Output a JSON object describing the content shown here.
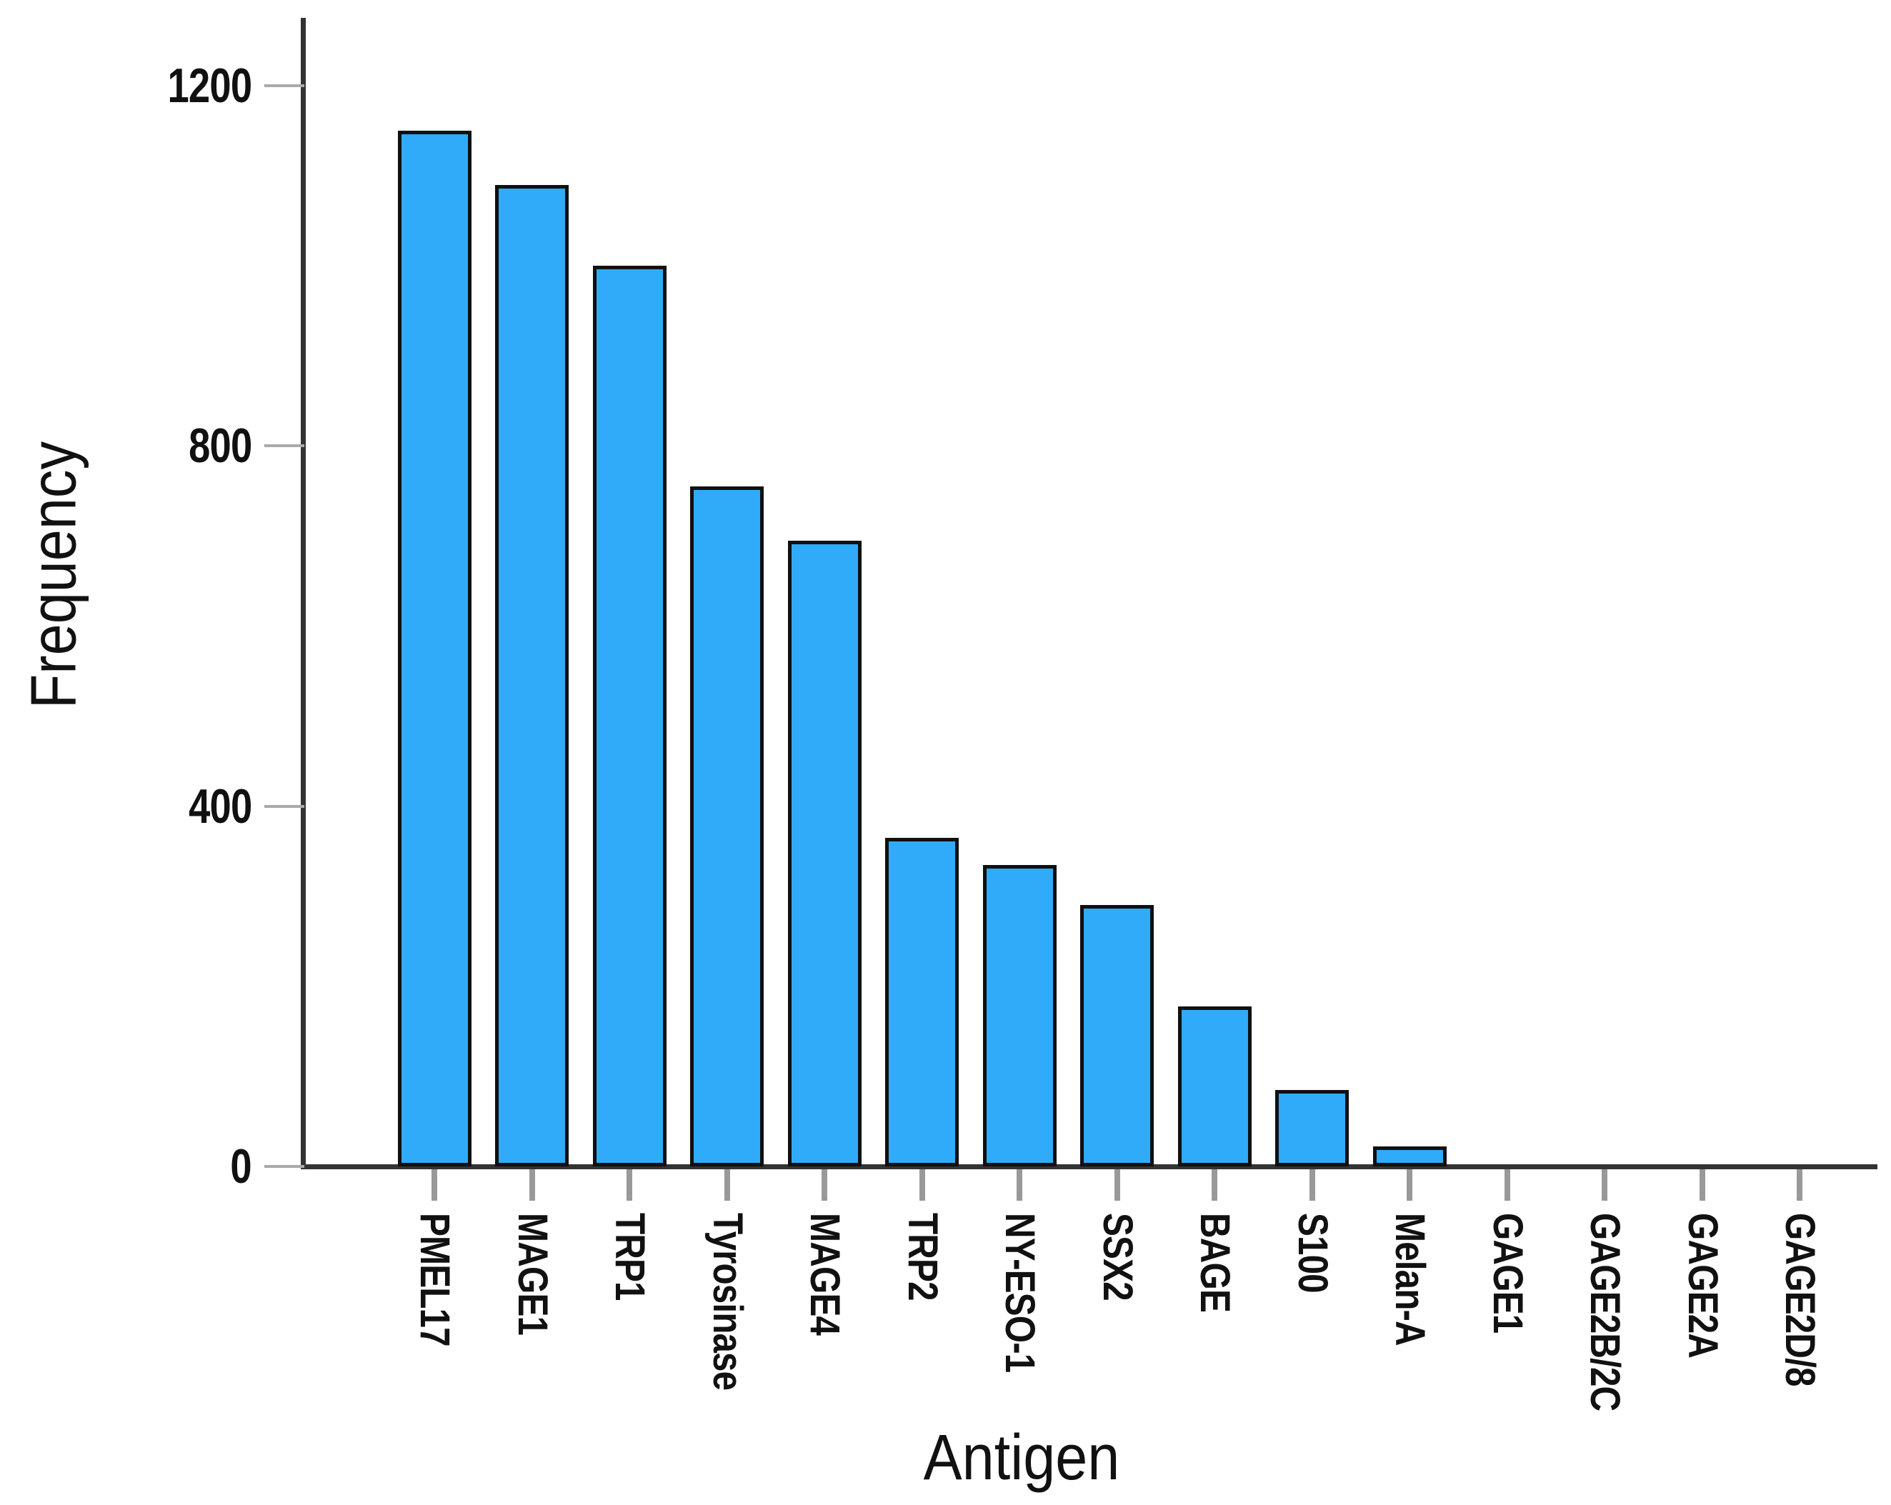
{
  "chart_data": {
    "type": "bar",
    "title": "",
    "xlabel": "Antigen",
    "ylabel": "Frequency",
    "categories": [
      "PMEL17",
      "MAGE1",
      "TRP1",
      "Tyrosinase",
      "MAGE4",
      "TRP2",
      "NY-ESO-1",
      "SSX2",
      "BAGE",
      "S100",
      "Melan-A",
      "GAGE1",
      "GAGE2B/2C",
      "GAGE2A",
      "GAGE2D/8"
    ],
    "values": [
      1150,
      1090,
      1000,
      755,
      695,
      365,
      335,
      290,
      178,
      85,
      22,
      0,
      0,
      0,
      0
    ],
    "yticks": [
      0,
      400,
      800,
      1200
    ],
    "ylim": [
      0,
      1271
    ],
    "grid": false,
    "legend": null,
    "bar_fill_color": "#2FABFA",
    "bar_border_color": "#101010",
    "axis_color": "#333333",
    "x_tick_color": "#999999",
    "y_tick_color": "#aaaaaa",
    "text_color": "#111111",
    "background_color": "#ffffff"
  }
}
